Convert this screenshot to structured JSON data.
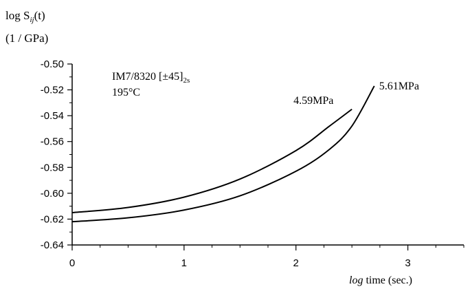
{
  "chart_data": {
    "type": "line",
    "ylabel_main": "log S",
    "ylabel_sub": "ij",
    "ylabel_tail": "(t)",
    "ylabel_unit": "(1 / GPa)",
    "xlabel_italic": "log",
    "xlabel_rest": " time (sec.)",
    "annotation_line1_main": "IM7/8320 [±45]",
    "annotation_line1_sub": "2s",
    "annotation_line2": "195°C",
    "xlim": [
      0,
      3.5
    ],
    "ylim": [
      -0.64,
      -0.5
    ],
    "x_ticks": [
      0,
      1,
      2,
      3
    ],
    "x_tick_labels": [
      "0",
      "1",
      "2",
      "3"
    ],
    "y_ticks": [
      -0.64,
      -0.62,
      -0.6,
      -0.58,
      -0.56,
      -0.54,
      -0.52,
      -0.5
    ],
    "y_tick_labels": [
      "-0.64",
      "-0.62",
      "-0.60",
      "-0.58",
      "-0.56",
      "-0.54",
      "-0.52",
      "-0.50"
    ],
    "series": [
      {
        "name": "4.59MPa",
        "x": [
          0,
          0.5,
          1.0,
          1.5,
          2.0,
          2.3,
          2.5
        ],
        "y": [
          -0.615,
          -0.611,
          -0.603,
          -0.589,
          -0.567,
          -0.548,
          -0.535
        ]
      },
      {
        "name": "5.61MPa",
        "x": [
          0,
          0.5,
          1.0,
          1.5,
          2.0,
          2.3,
          2.5,
          2.7
        ],
        "y": [
          -0.622,
          -0.619,
          -0.613,
          -0.602,
          -0.583,
          -0.566,
          -0.548,
          -0.517
        ]
      }
    ]
  }
}
